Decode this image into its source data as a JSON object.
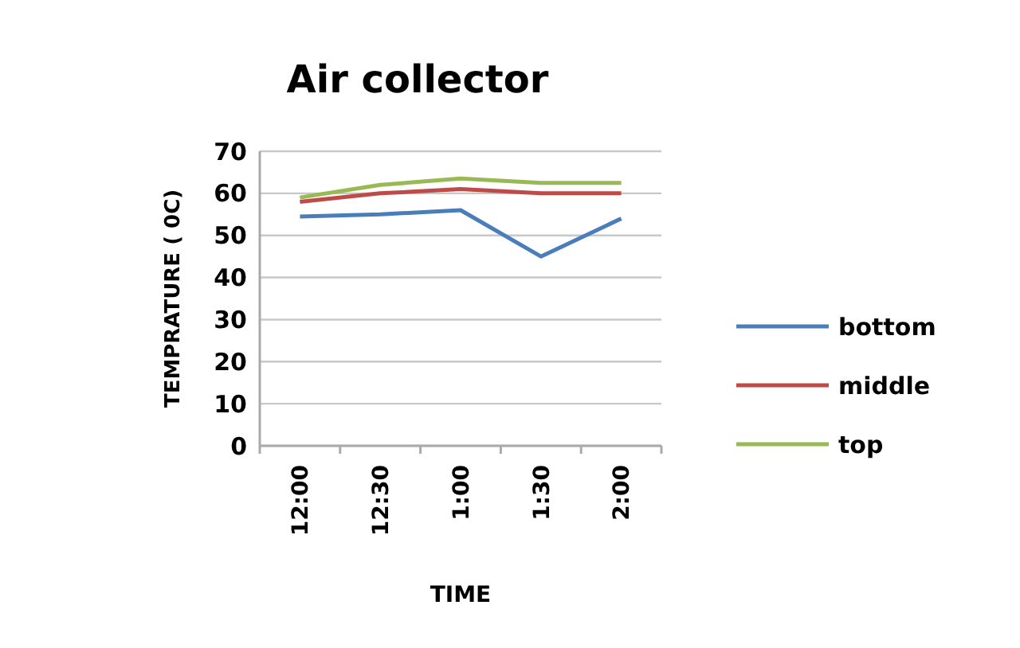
{
  "chart_data": {
    "type": "line",
    "title": "Air collector",
    "xlabel": "TIME",
    "ylabel": "TEMPRATURE ( 0C)",
    "categories": [
      "12:00",
      "12:30",
      "1:00",
      "1:30",
      "2:00"
    ],
    "series": [
      {
        "name": "bottom",
        "color": "#4a7ebb",
        "values": [
          54.5,
          55,
          56,
          45,
          54
        ]
      },
      {
        "name": "middle",
        "color": "#be4b48",
        "values": [
          58,
          60,
          61,
          60,
          60
        ]
      },
      {
        "name": "top",
        "color": "#98b954",
        "values": [
          59,
          62,
          63.5,
          62.5,
          62.5
        ]
      }
    ],
    "ylim": [
      0,
      70
    ],
    "yticks": [
      0,
      10,
      20,
      30,
      40,
      50,
      60,
      70
    ],
    "grid": "y",
    "legend": "right",
    "marker": "none",
    "line_style": "solid"
  }
}
